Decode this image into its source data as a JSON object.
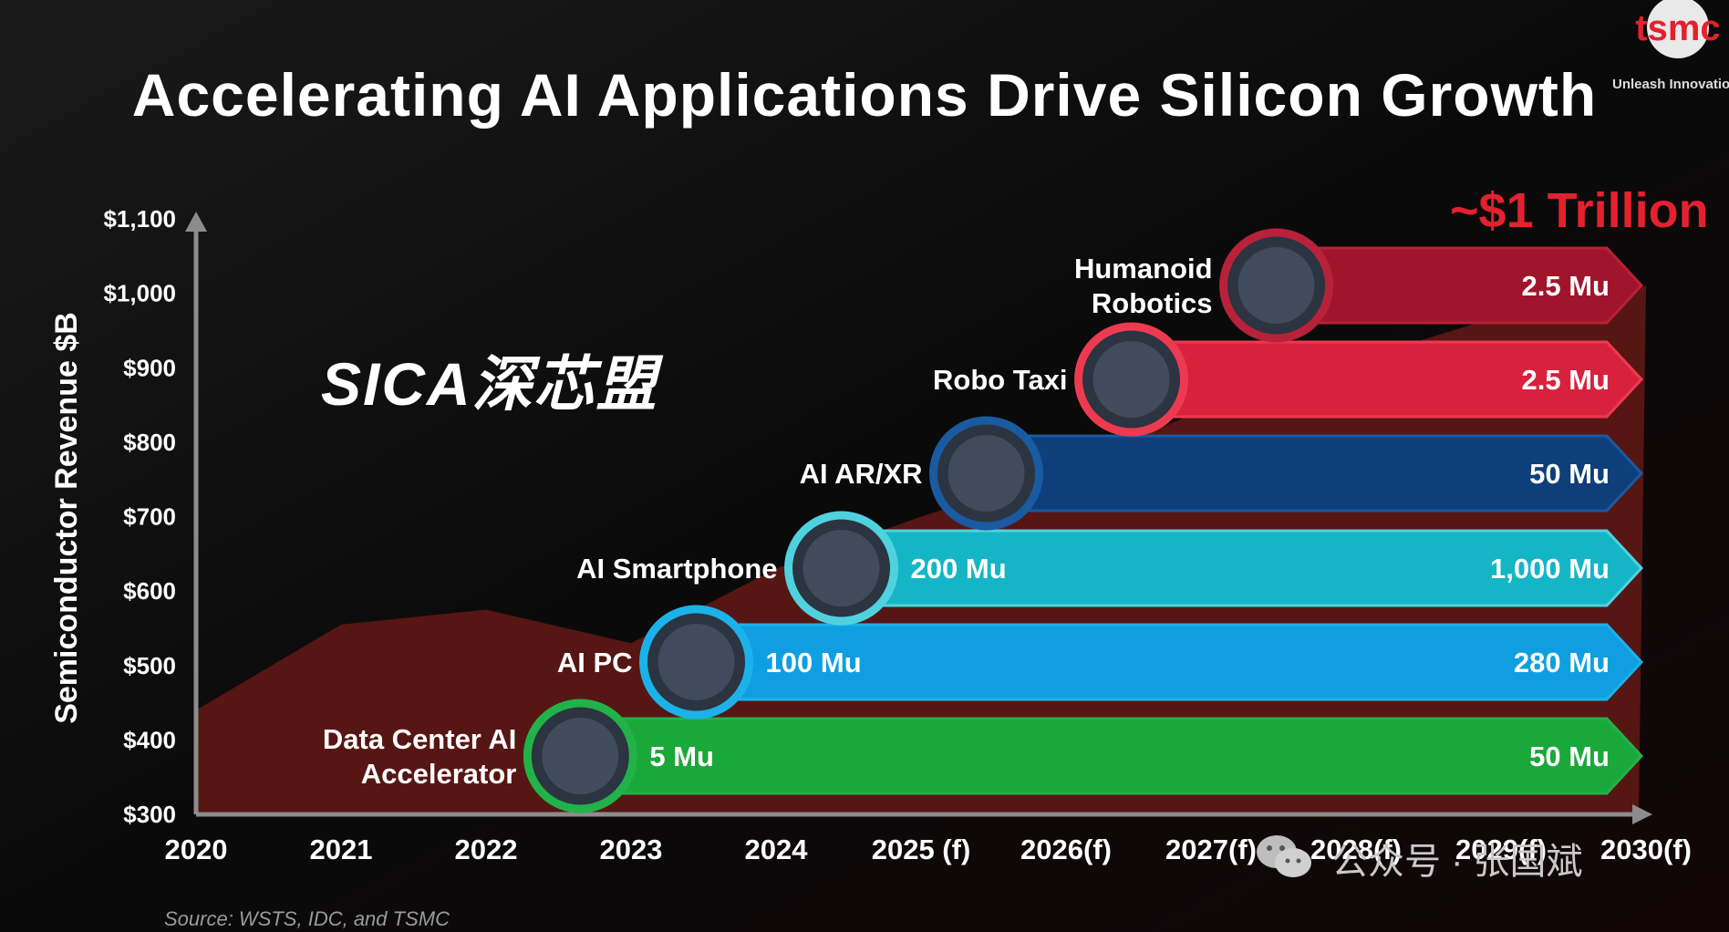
{
  "title": "Accelerating AI Applications Drive Silicon Growth",
  "logo": {
    "name": "tsmc",
    "tagline": "Unleash Innovation"
  },
  "watermark": "SICA深芯盟",
  "source": "Source: WSTS, IDC, and TSMC",
  "wechat": "公众号 · 张国斌",
  "chart_data": {
    "type": "area",
    "ylabel": "Semiconductor Revenue $B",
    "ylim": [
      300,
      1100
    ],
    "yticks": [
      "$300",
      "$400",
      "$500",
      "$600",
      "$700",
      "$800",
      "$900",
      "$1,000",
      "$1,100"
    ],
    "ytick_values": [
      300,
      400,
      500,
      600,
      700,
      800,
      900,
      1000,
      1100
    ],
    "x": [
      "2020",
      "2021",
      "2022",
      "2023",
      "2024",
      "2025 (f)",
      "2026(f)",
      "2027(f)",
      "2028(f)",
      "2029(f)",
      "2030(f)"
    ],
    "values": [
      440,
      555,
      575,
      530,
      630,
      700,
      760,
      850,
      910,
      970,
      1010
    ],
    "annotation": "~$1 Trillion",
    "applications": [
      {
        "label": [
          "Data Center AI",
          "Accelerator"
        ],
        "start_year_index": 2.65,
        "start_label": "5 Mu",
        "end_label": "50 Mu",
        "color": "#1aa83a",
        "ring": "#22b24a"
      },
      {
        "label": [
          "AI PC"
        ],
        "start_year_index": 3.45,
        "start_label": "100 Mu",
        "end_label": "280 Mu",
        "color": "#0f9fe0",
        "ring": "#1bb2ea"
      },
      {
        "label": [
          "AI Smartphone"
        ],
        "start_year_index": 4.45,
        "start_label": "200 Mu",
        "end_label": "1,000 Mu",
        "color": "#14b6c6",
        "ring": "#4fd2de"
      },
      {
        "label": [
          "AI AR/XR"
        ],
        "start_year_index": 5.45,
        "start_label": "",
        "end_label": "50 Mu",
        "color": "#0f3f7a",
        "ring": "#1a5aa0"
      },
      {
        "label": [
          "Robo Taxi"
        ],
        "start_year_index": 6.45,
        "start_label": "",
        "end_label": "2.5 Mu",
        "color": "#d8213d",
        "ring": "#ee3a50"
      },
      {
        "label": [
          "Humanoid",
          "Robotics"
        ],
        "start_year_index": 7.45,
        "start_label": "",
        "end_label": "2.5 Mu",
        "color": "#a0152c",
        "ring": "#b8213a"
      }
    ]
  }
}
